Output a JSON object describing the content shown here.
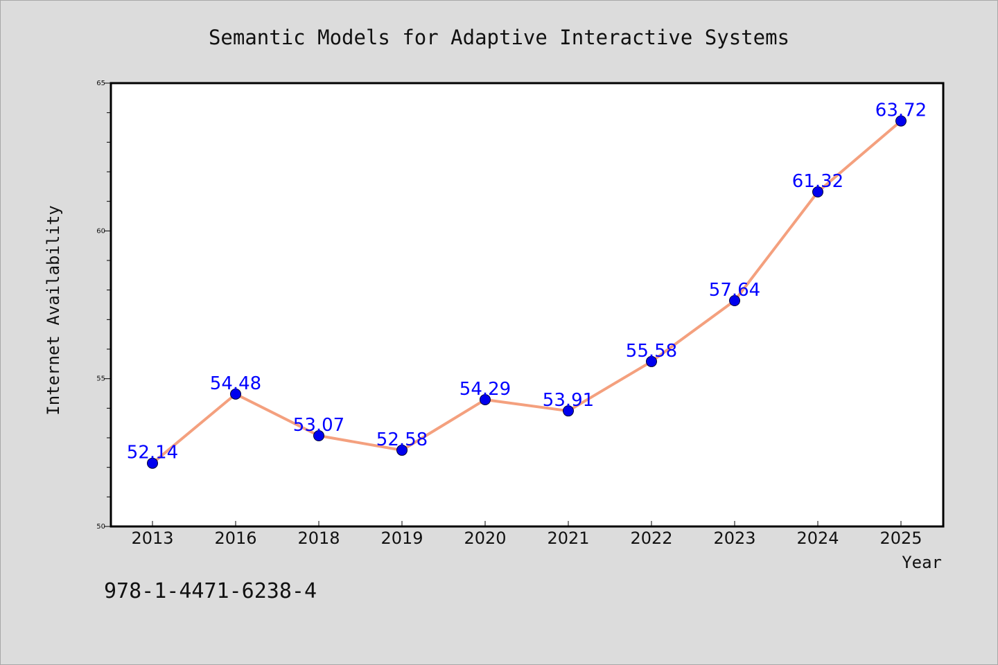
{
  "chart_data": {
    "type": "line",
    "title": "Semantic Models for Adaptive Interactive Systems",
    "xlabel": "Year",
    "ylabel": "Internet Availability",
    "categories": [
      "2013",
      "2016",
      "2018",
      "2019",
      "2020",
      "2021",
      "2022",
      "2023",
      "2024",
      "2025"
    ],
    "series": [
      {
        "values": [
          52.14,
          54.48,
          53.07,
          52.58,
          54.29,
          53.91,
          55.58,
          57.64,
          61.32,
          63.72
        ]
      }
    ],
    "data_labels": [
      "52.14",
      "54.48",
      "53.07",
      "52.58",
      "54.29",
      "53.91",
      "55.58",
      "57.64",
      "61.32",
      "63.72"
    ],
    "ylim": [
      50,
      65
    ],
    "yticks": [
      "50",
      "55",
      "60",
      "65"
    ],
    "grid": false,
    "colors": {
      "line": "#f4a07e",
      "marker": "#0000ee",
      "label": "#0000ff",
      "background": "#dcdcdc",
      "plot_bg": "#ffffff"
    }
  },
  "footer": {
    "isbn": "978-1-4471-6238-4"
  }
}
